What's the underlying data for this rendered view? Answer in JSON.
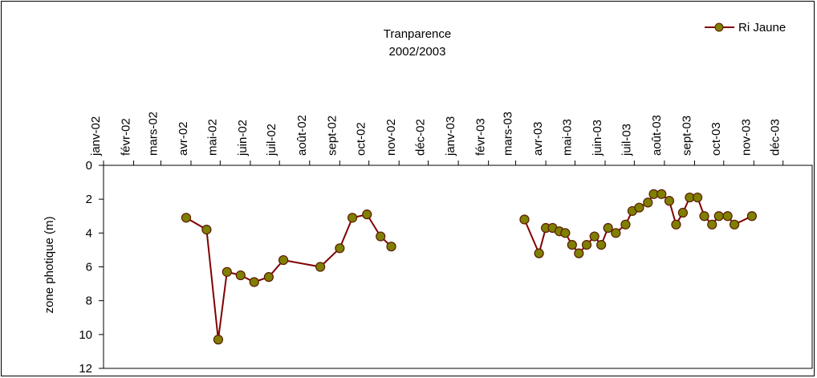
{
  "chart_data": {
    "type": "line",
    "title": "Tranparence",
    "subtitle": "2002/2003",
    "xlabel": "",
    "ylabel": "zone photique (m)",
    "y_reversed": true,
    "ylim": [
      0,
      12
    ],
    "y_ticks": [
      "0",
      "2",
      "4",
      "6",
      "8",
      "10",
      "12"
    ],
    "x_tick_labels": [
      "janv-02",
      "févr-02",
      "mars-02",
      "avr-02",
      "mai-02",
      "juin-02",
      "juil-02",
      "août-02",
      "sept-02",
      "oct-02",
      "nov-02",
      "déc-02",
      "janv-03",
      "févr-03",
      "mars-03",
      "avr-03",
      "mai-03",
      "juin-03",
      "juil-03",
      "août-03",
      "sept-03",
      "oct-03",
      "nov-03",
      "déc-03"
    ],
    "x_tick_dates": [
      "2002-01-01",
      "2002-02-01",
      "2002-03-01",
      "2002-04-01",
      "2002-05-01",
      "2002-06-01",
      "2002-07-01",
      "2002-08-01",
      "2002-09-01",
      "2002-10-01",
      "2002-11-01",
      "2002-12-01",
      "2003-01-01",
      "2003-02-01",
      "2003-03-01",
      "2003-04-01",
      "2003-05-01",
      "2003-06-01",
      "2003-07-01",
      "2003-08-01",
      "2003-09-01",
      "2003-10-01",
      "2003-11-01",
      "2003-12-01"
    ],
    "xlim": [
      "2002-01-01",
      "2003-12-31"
    ],
    "grid": false,
    "legend_position": "top-right",
    "series": [
      {
        "name": "Ri Jaune",
        "line_color": "#800000",
        "marker_color": "#808000",
        "segments": [
          [
            {
              "x": "2002-03-27",
              "y": 3.1
            },
            {
              "x": "2002-04-17",
              "y": 3.8
            },
            {
              "x": "2002-04-29",
              "y": 10.3
            },
            {
              "x": "2002-05-08",
              "y": 6.3
            },
            {
              "x": "2002-05-22",
              "y": 6.5
            },
            {
              "x": "2002-06-05",
              "y": 6.9
            },
            {
              "x": "2002-06-20",
              "y": 6.6
            },
            {
              "x": "2002-07-05",
              "y": 5.6
            },
            {
              "x": "2002-08-12",
              "y": 6.0
            },
            {
              "x": "2002-09-01",
              "y": 4.9
            },
            {
              "x": "2002-09-14",
              "y": 3.1
            },
            {
              "x": "2002-09-29",
              "y": 2.9
            },
            {
              "x": "2002-10-13",
              "y": 4.2
            },
            {
              "x": "2002-10-24",
              "y": 4.8
            }
          ],
          [
            {
              "x": "2003-03-10",
              "y": 3.2
            },
            {
              "x": "2003-03-25",
              "y": 5.2
            },
            {
              "x": "2003-04-01",
              "y": 3.7
            },
            {
              "x": "2003-04-08",
              "y": 3.7
            },
            {
              "x": "2003-04-15",
              "y": 3.9
            },
            {
              "x": "2003-04-21",
              "y": 4.0
            },
            {
              "x": "2003-04-28",
              "y": 4.7
            },
            {
              "x": "2003-05-05",
              "y": 5.2
            },
            {
              "x": "2003-05-13",
              "y": 4.7
            },
            {
              "x": "2003-05-21",
              "y": 4.2
            },
            {
              "x": "2003-05-28",
              "y": 4.7
            },
            {
              "x": "2003-06-04",
              "y": 3.7
            },
            {
              "x": "2003-06-12",
              "y": 4.0
            },
            {
              "x": "2003-06-22",
              "y": 3.5
            },
            {
              "x": "2003-06-29",
              "y": 2.7
            },
            {
              "x": "2003-07-06",
              "y": 2.5
            },
            {
              "x": "2003-07-15",
              "y": 2.2
            },
            {
              "x": "2003-07-21",
              "y": 1.7
            },
            {
              "x": "2003-07-29",
              "y": 1.7
            },
            {
              "x": "2003-08-06",
              "y": 2.1
            },
            {
              "x": "2003-08-13",
              "y": 3.5
            },
            {
              "x": "2003-08-20",
              "y": 2.8
            },
            {
              "x": "2003-08-27",
              "y": 1.9
            },
            {
              "x": "2003-09-04",
              "y": 1.9
            },
            {
              "x": "2003-09-11",
              "y": 3.0
            },
            {
              "x": "2003-09-19",
              "y": 3.5
            },
            {
              "x": "2003-09-26",
              "y": 3.0
            },
            {
              "x": "2003-10-05",
              "y": 3.0
            },
            {
              "x": "2003-10-12",
              "y": 3.5
            },
            {
              "x": "2003-10-30",
              "y": 3.0
            }
          ]
        ]
      }
    ]
  }
}
